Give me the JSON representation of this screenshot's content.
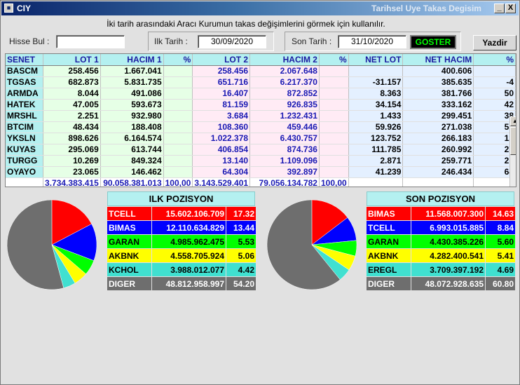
{
  "window": {
    "icon": "app-icon",
    "title_left": "CIY",
    "title_right": "Tarihsel Uye Takas Degisim",
    "minimize_label": "_",
    "close_label": "X"
  },
  "info_text": "İki tarih arasındaki  Aracı Kurumun takas değişimlerini görmek için kullanılır.",
  "search": {
    "label": "Hisse Bul :",
    "value": ""
  },
  "start_date": {
    "label": "Ilk Tarih :",
    "value": "30/09/2020"
  },
  "end_date": {
    "label": "Son Tarih :",
    "value": "31/10/2020"
  },
  "goster_label": "GOSTER",
  "yazdir_label": "Yazdir",
  "table": {
    "headers": [
      "SENET",
      "LOT 1",
      "HACIM 1",
      "%",
      "LOT 2",
      "HACIM 2",
      "%",
      "NET LOT",
      "NET HACIM",
      "%"
    ],
    "rows": [
      [
        "BASCM",
        "258.456",
        "1.667.041",
        "",
        "258.456",
        "2.067.648",
        "",
        "",
        "400.606",
        ""
      ],
      [
        "TGSAS",
        "682.873",
        "5.831.735",
        "",
        "651.716",
        "6.217.370",
        "",
        "-31.157",
        "385.635",
        "-4"
      ],
      [
        "ARMDA",
        "8.044",
        "491.086",
        "",
        "16.407",
        "872.852",
        "",
        "8.363",
        "381.766",
        "50"
      ],
      [
        "HATEK",
        "47.005",
        "593.673",
        "",
        "81.159",
        "926.835",
        "",
        "34.154",
        "333.162",
        "42"
      ],
      [
        "MRSHL",
        "2.251",
        "932.980",
        "",
        "3.684",
        "1.232.431",
        "",
        "1.433",
        "299.451",
        "38"
      ],
      [
        "BTCIM",
        "48.434",
        "188.408",
        "",
        "108.360",
        "459.446",
        "",
        "59.926",
        "271.038",
        "55"
      ],
      [
        "YKSLN",
        "898.626",
        "6.164.574",
        "",
        "1.022.378",
        "6.430.757",
        "",
        "123.752",
        "266.183",
        "12"
      ],
      [
        "KUYAS",
        "295.069",
        "613.744",
        "",
        "406.854",
        "874.736",
        "",
        "111.785",
        "260.992",
        "27"
      ],
      [
        "TURGG",
        "10.269",
        "849.324",
        "",
        "13.140",
        "1.109.096",
        "",
        "2.871",
        "259.771",
        "21"
      ],
      [
        "OYAYO",
        "23.065",
        "146.462",
        "",
        "64.304",
        "392.897",
        "",
        "41.239",
        "246.434",
        "64"
      ]
    ],
    "totals": [
      "",
      "3.734.383.415",
      "90.058.381.013",
      "100,00",
      "3.143.529.401",
      "79.056.134.782",
      "100,00",
      "",
      "",
      ""
    ]
  },
  "ilk": {
    "title": "ILK POZISYON",
    "rows": [
      {
        "name": "TCELL",
        "value": "15.602.106.709",
        "pct": "17.32",
        "color": "#ff0000",
        "text": "#ffffff"
      },
      {
        "name": "BIMAS",
        "value": "12.110.634.829",
        "pct": "13.44",
        "color": "#0000ff",
        "text": "#ffffff"
      },
      {
        "name": "GARAN",
        "value": "4.985.962.475",
        "pct": "5.53",
        "color": "#00ff00",
        "text": "#000000"
      },
      {
        "name": "AKBNK",
        "value": "4.558.705.924",
        "pct": "5.06",
        "color": "#ffff00",
        "text": "#000000"
      },
      {
        "name": "KCHOL",
        "value": "3.988.012.077",
        "pct": "4.42",
        "color": "#40e0d0",
        "text": "#000000"
      },
      {
        "name": "DIGER",
        "value": "48.812.958.997",
        "pct": "54.20",
        "color": "#6e6e6e",
        "text": "#ffffff"
      }
    ]
  },
  "son": {
    "title": "SON POZISYON",
    "rows": [
      {
        "name": "BIMAS",
        "value": "11.568.007.300",
        "pct": "14.63",
        "color": "#ff0000",
        "text": "#ffffff"
      },
      {
        "name": "TCELL",
        "value": "6.993.015.885",
        "pct": "8.84",
        "color": "#0000ff",
        "text": "#ffffff"
      },
      {
        "name": "GARAN",
        "value": "4.430.385.226",
        "pct": "5.60",
        "color": "#00ff00",
        "text": "#000000"
      },
      {
        "name": "AKBNK",
        "value": "4.282.400.541",
        "pct": "5.41",
        "color": "#ffff00",
        "text": "#000000"
      },
      {
        "name": "EREGL",
        "value": "3.709.397.192",
        "pct": "4.69",
        "color": "#40e0d0",
        "text": "#000000"
      },
      {
        "name": "DIGER",
        "value": "48.072.928.635",
        "pct": "60.80",
        "color": "#6e6e6e",
        "text": "#ffffff"
      }
    ]
  }
}
